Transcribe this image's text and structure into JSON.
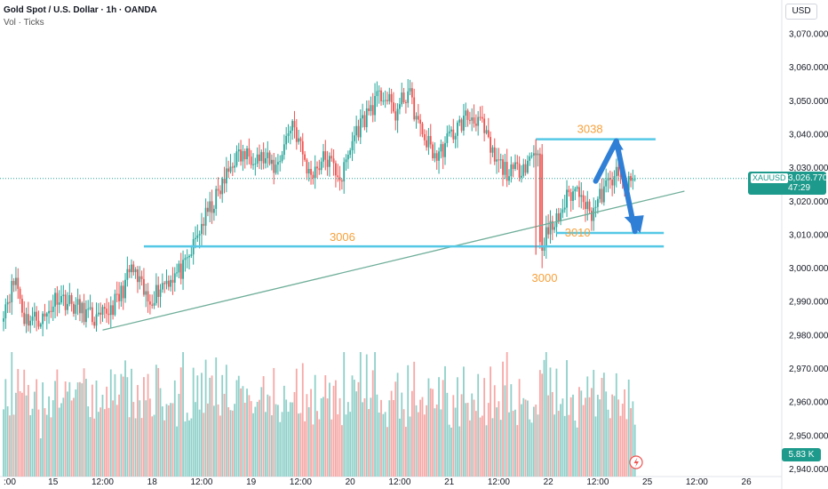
{
  "header": {
    "title": "Gold Spot / U.S. Dollar · 1h · OANDA",
    "subtitle": "Vol · Ticks"
  },
  "currency_button": "USD",
  "symbol_badge": {
    "symbol": "XAUUSD",
    "price": "3,026.770",
    "countdown": "47:29"
  },
  "volume_badge": "5.83 K",
  "colors": {
    "up": "#26a69a",
    "down": "#ef5350",
    "vol_up": "#8fd0c9",
    "vol_down": "#f6a8a6",
    "annotation": "#f7a03a",
    "level_line": "#55c8e6",
    "trend_line": "#6fae9a",
    "arrow": "#2f7fd6",
    "badge_bg": "#1e9a8c"
  },
  "chart_data": {
    "type": "candlestick",
    "y_axis": {
      "ticks": [
        2940,
        2950,
        2960,
        2970,
        2980,
        2990,
        3000,
        3010,
        3020,
        3030,
        3040,
        3050,
        3060,
        3070
      ],
      "labels": [
        "2,940.000",
        "2,950.000",
        "2,960.000",
        "2,970.000",
        "2,980.000",
        "2,990.000",
        "3,000.000",
        "3,010.000",
        "3,020.000",
        "3,030.000",
        "3,040.000",
        "3,050.000",
        "3,060.000",
        "3,070.000"
      ],
      "ylim": [
        2938,
        3078
      ]
    },
    "x_axis": {
      "labels": [
        ":00",
        "15",
        "12:00",
        "18",
        "12:00",
        "19",
        "12:00",
        "20",
        "12:00",
        "21",
        "12:00",
        "22",
        "12:00",
        "25",
        "12:00",
        "26"
      ],
      "positions": [
        0,
        24,
        48,
        72,
        96,
        120,
        144,
        168,
        192,
        216,
        240,
        264,
        288,
        312,
        336,
        360
      ]
    },
    "key_points": [
      {
        "t": 0,
        "price": 2988
      },
      {
        "t": 6,
        "price": 2997
      },
      {
        "t": 10,
        "price": 2985
      },
      {
        "t": 20,
        "price": 2985
      },
      {
        "t": 26,
        "price": 2992
      },
      {
        "t": 36,
        "price": 2988
      },
      {
        "t": 46,
        "price": 2984
      },
      {
        "t": 56,
        "price": 2991
      },
      {
        "t": 62,
        "price": 3000
      },
      {
        "t": 70,
        "price": 2990
      },
      {
        "t": 78,
        "price": 2996
      },
      {
        "t": 88,
        "price": 3000
      },
      {
        "t": 96,
        "price": 3013
      },
      {
        "t": 104,
        "price": 3022
      },
      {
        "t": 112,
        "price": 3033
      },
      {
        "t": 122,
        "price": 3034
      },
      {
        "t": 132,
        "price": 3030
      },
      {
        "t": 140,
        "price": 3044
      },
      {
        "t": 148,
        "price": 3028
      },
      {
        "t": 156,
        "price": 3033
      },
      {
        "t": 164,
        "price": 3027
      },
      {
        "t": 170,
        "price": 3040
      },
      {
        "t": 178,
        "price": 3048
      },
      {
        "t": 184,
        "price": 3052
      },
      {
        "t": 190,
        "price": 3046
      },
      {
        "t": 196,
        "price": 3053
      },
      {
        "t": 202,
        "price": 3041
      },
      {
        "t": 210,
        "price": 3033
      },
      {
        "t": 216,
        "price": 3039
      },
      {
        "t": 224,
        "price": 3045
      },
      {
        "t": 230,
        "price": 3045
      },
      {
        "t": 238,
        "price": 3032
      },
      {
        "t": 246,
        "price": 3028
      },
      {
        "t": 254,
        "price": 3032
      },
      {
        "t": 259,
        "price": 3036
      },
      {
        "t": 260,
        "price": 3006
      },
      {
        "t": 262,
        "price": 3009
      },
      {
        "t": 268,
        "price": 3014
      },
      {
        "t": 274,
        "price": 3022
      },
      {
        "t": 280,
        "price": 3024
      },
      {
        "t": 284,
        "price": 3016
      },
      {
        "t": 290,
        "price": 3022
      },
      {
        "t": 296,
        "price": 3028
      },
      {
        "t": 302,
        "price": 3024
      },
      {
        "t": 306,
        "price": 3026.77
      }
    ],
    "volume_max": 16000,
    "volume_label": "5.83 K",
    "last_price": 3026.77,
    "annotations": [
      {
        "label": "3038",
        "price": 3038.5,
        "from": 258,
        "to": 316
      },
      {
        "label": "3006",
        "price": 3006.5,
        "from": 68,
        "to": 320
      },
      {
        "label": "3010",
        "price": 3010.5,
        "from": 268,
        "to": 320
      },
      {
        "label": "3000",
        "price": 2998
      }
    ],
    "trend_line": {
      "from": [
        48,
        2981.5
      ],
      "to": [
        330,
        3023
      ]
    }
  }
}
